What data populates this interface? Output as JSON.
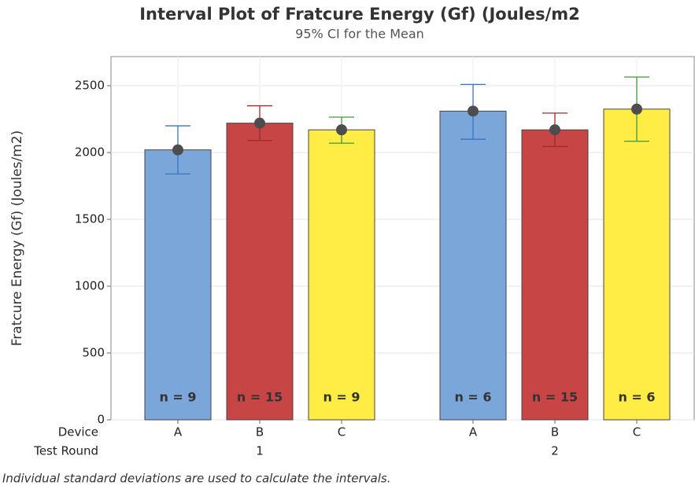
{
  "chart_data": {
    "type": "interval-bar",
    "title": "Interval Plot of Fratcure Energy (Gf) (Joules/m2",
    "subtitle": "95% CI for the Mean",
    "y_label": "Fratcure Energy (Gf) (Joules/m2)",
    "x_row_labels": [
      "Device",
      "Test Round"
    ],
    "categories": [
      "1",
      "2"
    ],
    "series": [
      {
        "name": "A",
        "color": "#7ba6da",
        "ci_color": "#3b74c0",
        "values": [
          2020,
          2310
        ],
        "ci_low": [
          1840,
          2100
        ],
        "ci_high": [
          2200,
          2510
        ],
        "n_labels": [
          "n = 9",
          "n = 6"
        ]
      },
      {
        "name": "B",
        "color": "#c84545",
        "ci_color": "#a02828",
        "values": [
          2220,
          2170
        ],
        "ci_low": [
          2090,
          2045
        ],
        "ci_high": [
          2350,
          2295
        ],
        "n_labels": [
          "n = 15",
          "n = 15"
        ]
      },
      {
        "name": "C",
        "color": "#ffec45",
        "ci_color": "#3a9a3a",
        "values": [
          2170,
          2325
        ],
        "ci_low": [
          2070,
          2085
        ],
        "ci_high": [
          2265,
          2565
        ],
        "n_labels": [
          "n = 9",
          "n = 6"
        ]
      }
    ],
    "ylim": [
      0,
      2718
    ],
    "yticks": [
      0,
      500,
      1000,
      1500,
      2000,
      2500
    ],
    "grid": true,
    "footnote": "Individual standard deviations are used to calculate the intervals."
  }
}
